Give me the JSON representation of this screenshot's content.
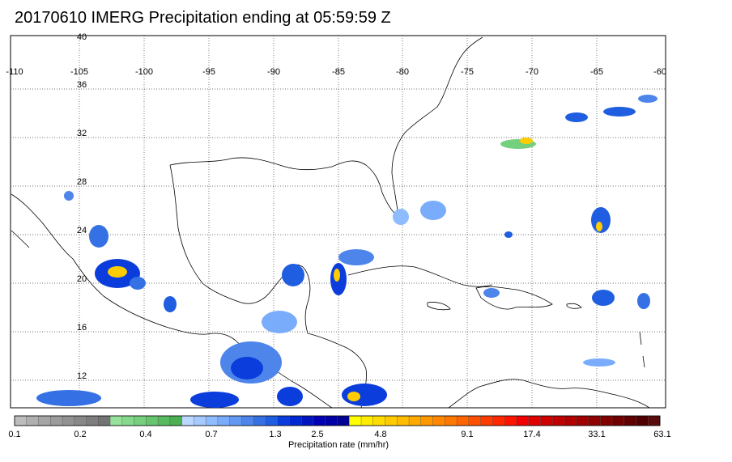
{
  "title": "20170610 IMERG Precipitation ending at 05:59:59 Z",
  "lon_ticks": [
    "-110",
    "-105",
    "-100",
    "-95",
    "-90",
    "-85",
    "-80",
    "-75",
    "-70",
    "-65",
    "-60"
  ],
  "lat_ticks": [
    "40",
    "36",
    "32",
    "28",
    "24",
    "20",
    "16",
    "12"
  ],
  "colorbar": {
    "label": "Precipitation rate (mm/hr)",
    "tick_labels": [
      "0.1",
      "0.2",
      "0.4",
      "0.7",
      "1.3",
      "2.5",
      "4.8",
      "9.1",
      "17.4",
      "33.1",
      "63.1"
    ],
    "colors": [
      "#bdbdbd",
      "#b0b0b0",
      "#a6a6a6",
      "#9c9c9c",
      "#929292",
      "#888888",
      "#7e7e7e",
      "#747474",
      "#96e29a",
      "#84d98a",
      "#74d07c",
      "#66c56e",
      "#58bb60",
      "#4ab052",
      "#bcd8ff",
      "#a6caff",
      "#8fbcff",
      "#79adfb",
      "#6399f2",
      "#4d85ea",
      "#3571e4",
      "#1f5ee0",
      "#0b3ddc",
      "#0028d0",
      "#0014c0",
      "#0000b5",
      "#0000a5",
      "#000095",
      "#ffff00",
      "#ffec00",
      "#ffdc00",
      "#ffcc00",
      "#ffbc00",
      "#ffaa00",
      "#ff9800",
      "#ff8800",
      "#ff7800",
      "#ff6400",
      "#ff5000",
      "#ff3c00",
      "#ff2800",
      "#ff1400",
      "#f00000",
      "#e00000",
      "#d00000",
      "#c00000",
      "#b00000",
      "#a00000",
      "#900000",
      "#800000",
      "#700000",
      "#600000",
      "#500000",
      "#5a0c0c"
    ]
  }
}
